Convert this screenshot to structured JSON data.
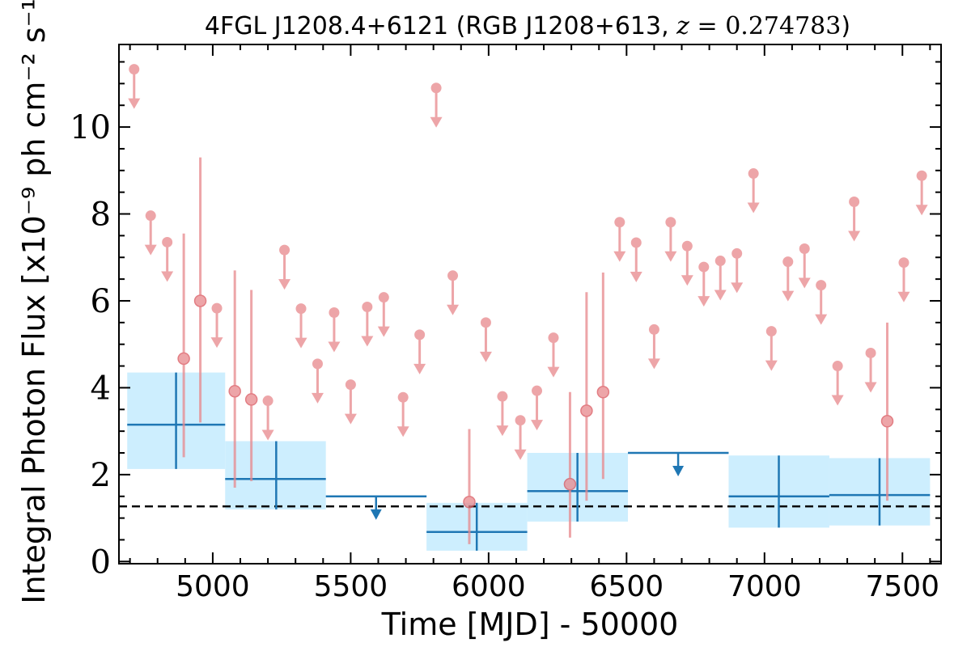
{
  "chart_data": {
    "type": "scatter",
    "title_prefix": "4FGL J1208.4+6121 (RGB J1208+613, ",
    "title_var": "z",
    "title_eq": " = ",
    "title_value": "0.274783",
    "title_suffix": ")",
    "xlabel": "Time [MJD] - 50000",
    "ylabel": "Integral Photon Flux [x10⁻⁹ ph cm⁻² s⁻¹]",
    "xlim": [
      4660,
      7640
    ],
    "ylim": [
      -0.05,
      11.9
    ],
    "xticks": [
      5000,
      5500,
      6000,
      6500,
      7000,
      7500
    ],
    "yticks": [
      0,
      2,
      4,
      6,
      8,
      10
    ],
    "reference_level": 1.27,
    "colors": {
      "short_bins": "#e8888c",
      "long_bins": "#1f77b4",
      "long_bin_box": "#cdeefe",
      "reference_line": "#000000"
    },
    "short_bins": {
      "detections": [
        {
          "x": 4895,
          "y": 4.67,
          "ylo": 2.4,
          "yhi": 7.55
        },
        {
          "x": 4955,
          "y": 6.0,
          "ylo": 3.2,
          "yhi": 9.3
        },
        {
          "x": 5080,
          "y": 3.92,
          "ylo": 1.7,
          "yhi": 6.7
        },
        {
          "x": 5140,
          "y": 3.73,
          "ylo": 1.85,
          "yhi": 6.25
        },
        {
          "x": 5930,
          "y": 1.37,
          "ylo": 0.4,
          "yhi": 3.05
        },
        {
          "x": 6295,
          "y": 1.78,
          "ylo": 0.55,
          "yhi": 3.9
        },
        {
          "x": 6355,
          "y": 3.47,
          "ylo": 1.4,
          "yhi": 6.2
        },
        {
          "x": 6415,
          "y": 3.9,
          "ylo": 1.9,
          "yhi": 6.65
        },
        {
          "x": 7445,
          "y": 3.23,
          "ylo": 1.4,
          "yhi": 5.5
        }
      ],
      "upper_limits": [
        {
          "x": 4715,
          "y": 11.33
        },
        {
          "x": 4775,
          "y": 7.96
        },
        {
          "x": 4835,
          "y": 7.35
        },
        {
          "x": 5015,
          "y": 5.83
        },
        {
          "x": 5200,
          "y": 3.7
        },
        {
          "x": 5260,
          "y": 7.17
        },
        {
          "x": 5320,
          "y": 5.82
        },
        {
          "x": 5380,
          "y": 4.55
        },
        {
          "x": 5440,
          "y": 5.73
        },
        {
          "x": 5500,
          "y": 4.07
        },
        {
          "x": 5560,
          "y": 5.86
        },
        {
          "x": 5620,
          "y": 6.08
        },
        {
          "x": 5690,
          "y": 3.78
        },
        {
          "x": 5750,
          "y": 5.22
        },
        {
          "x": 5810,
          "y": 10.9
        },
        {
          "x": 5870,
          "y": 6.58
        },
        {
          "x": 5990,
          "y": 5.5
        },
        {
          "x": 6050,
          "y": 3.8
        },
        {
          "x": 6115,
          "y": 3.25
        },
        {
          "x": 6175,
          "y": 3.93
        },
        {
          "x": 6235,
          "y": 5.15
        },
        {
          "x": 6475,
          "y": 7.81
        },
        {
          "x": 6535,
          "y": 7.34
        },
        {
          "x": 6600,
          "y": 5.34
        },
        {
          "x": 6660,
          "y": 7.81
        },
        {
          "x": 6720,
          "y": 7.26
        },
        {
          "x": 6780,
          "y": 6.78
        },
        {
          "x": 6840,
          "y": 6.92
        },
        {
          "x": 6900,
          "y": 7.09
        },
        {
          "x": 6960,
          "y": 8.93
        },
        {
          "x": 7025,
          "y": 5.3
        },
        {
          "x": 7085,
          "y": 6.9
        },
        {
          "x": 7145,
          "y": 7.2
        },
        {
          "x": 7205,
          "y": 6.36
        },
        {
          "x": 7265,
          "y": 4.5
        },
        {
          "x": 7325,
          "y": 8.28
        },
        {
          "x": 7385,
          "y": 4.8
        },
        {
          "x": 7505,
          "y": 6.88
        },
        {
          "x": 7570,
          "y": 8.88
        }
      ]
    },
    "long_bins": {
      "detections": [
        {
          "x": 4867,
          "xmin": 4690,
          "xmax": 5045,
          "y": 3.15,
          "ylo": 2.13,
          "yhi": 4.35
        },
        {
          "x": 5230,
          "xmin": 5045,
          "xmax": 5410,
          "y": 1.9,
          "ylo": 1.2,
          "yhi": 2.77
        },
        {
          "x": 5957,
          "xmin": 5775,
          "xmax": 6140,
          "y": 0.68,
          "ylo": 0.25,
          "yhi": 1.35
        },
        {
          "x": 6322,
          "xmin": 6140,
          "xmax": 6505,
          "y": 1.62,
          "ylo": 0.92,
          "yhi": 2.5
        },
        {
          "x": 7052,
          "xmin": 6870,
          "xmax": 7235,
          "y": 1.5,
          "ylo": 0.78,
          "yhi": 2.44
        },
        {
          "x": 7417,
          "xmin": 7235,
          "xmax": 7600,
          "y": 1.53,
          "ylo": 0.83,
          "yhi": 2.38
        }
      ],
      "upper_limits": [
        {
          "x": 5592,
          "xmin": 5410,
          "xmax": 5775,
          "y": 1.5
        },
        {
          "x": 6687,
          "xmin": 6505,
          "xmax": 6870,
          "y": 2.5
        }
      ]
    }
  }
}
